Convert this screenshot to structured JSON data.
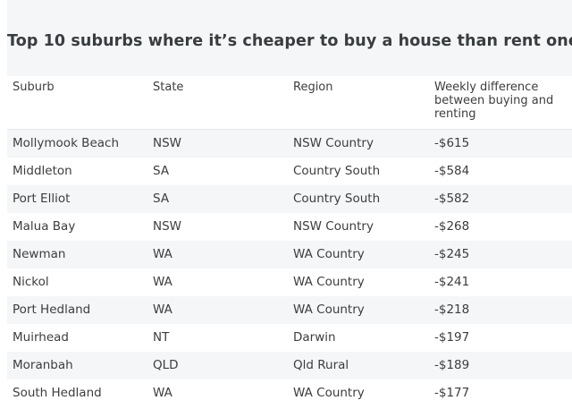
{
  "title": "Top 10 suburbs where it’s cheaper to buy a house than rent one",
  "chart_data": {
    "type": "table",
    "title": "Top 10 suburbs where it’s cheaper to buy a house than rent one",
    "columns": [
      "Suburb",
      "State",
      "Region",
      "Weekly difference between buying and renting"
    ],
    "rows": [
      [
        "Mollymook Beach",
        "NSW",
        "NSW Country",
        "-$615"
      ],
      [
        "Middleton",
        "SA",
        "Country South",
        "-$584"
      ],
      [
        "Port Elliot",
        "SA",
        "Country South",
        "-$582"
      ],
      [
        "Malua Bay",
        "NSW",
        "NSW Country",
        "-$268"
      ],
      [
        "Newman",
        "WA",
        "WA Country",
        "-$245"
      ],
      [
        "Nickol",
        "WA",
        "WA Country",
        "-$241"
      ],
      [
        "Port Hedland",
        "WA",
        "WA Country",
        "-$218"
      ],
      [
        "Muirhead",
        "NT",
        "Darwin",
        "-$197"
      ],
      [
        "Moranbah",
        "QLD",
        "Qld Rural",
        "-$189"
      ],
      [
        "South Hedland",
        "WA",
        "WA Country",
        "-$177"
      ]
    ]
  },
  "colors": {
    "band": "#f4f6f8",
    "title_text": "#3a3d40",
    "body_text": "#3d3d3d",
    "header_rule": "#e3e6ea"
  }
}
